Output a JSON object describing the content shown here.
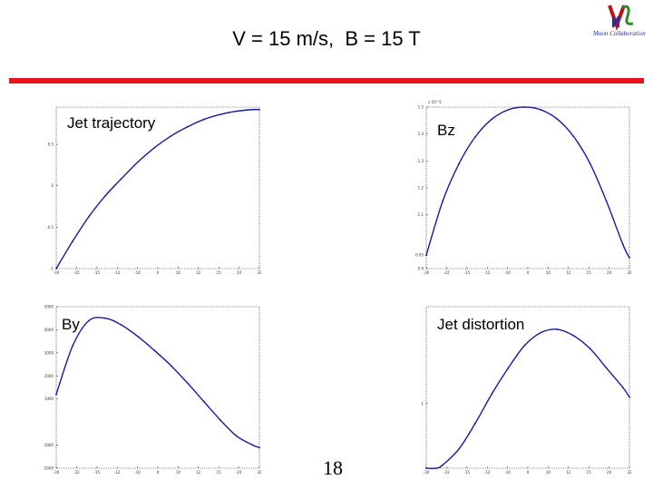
{
  "slide": {
    "title": "V = 15 m/s,  B = 15 T",
    "page_number": "18",
    "logo_text": "Muon Collaboration",
    "accent_color": "#e8141c",
    "line_color": "#1a1aa0"
  },
  "chart_data": [
    {
      "type": "line",
      "label": "Jet trajectory",
      "xlim": [
        -30,
        32
      ],
      "ylim": [
        -1,
        0.95
      ],
      "x_ticks": [
        "-30",
        "-22",
        "-15",
        "-12",
        "-10",
        "0",
        "10",
        "12",
        "15",
        "20",
        "32"
      ],
      "y_ticks": [
        {
          "value": -1,
          "text": "-1"
        },
        {
          "value": -0.5,
          "text": "-0.5"
        },
        {
          "value": 0,
          "text": "0"
        },
        {
          "value": 0.5,
          "text": "0.5"
        }
      ],
      "x": [
        -30,
        -25,
        -20,
        -15,
        -10,
        -5,
        0,
        5,
        10,
        15,
        20,
        25,
        30,
        32
      ],
      "y": [
        -1.0,
        -0.67,
        -0.37,
        -0.12,
        0.09,
        0.29,
        0.46,
        0.6,
        0.71,
        0.8,
        0.86,
        0.9,
        0.92,
        0.92
      ]
    },
    {
      "type": "line",
      "label": "Bz",
      "xlim": [
        -30,
        32
      ],
      "ylim": [
        0.9,
        1.5
      ],
      "exponent_label": "x 10^5",
      "x_ticks": [
        "-30",
        "-22",
        "-15",
        "-12",
        "-10",
        "0",
        "10",
        "12",
        "15",
        "20",
        "32"
      ],
      "y_ticks": [
        {
          "value": 0.9,
          "text": "0.9"
        },
        {
          "value": 0.95,
          "text": "0.95"
        },
        {
          "value": 1.1,
          "text": "1.1"
        },
        {
          "value": 1.2,
          "text": "1.2"
        },
        {
          "value": 1.3,
          "text": "1.3"
        },
        {
          "value": 1.4,
          "text": "1.4"
        },
        {
          "value": 1.5,
          "text": "1.5"
        }
      ],
      "x": [
        -30,
        -25,
        -20,
        -15,
        -10,
        -5,
        0,
        5,
        10,
        15,
        20,
        25,
        30,
        32
      ],
      "y": [
        0.95,
        1.15,
        1.29,
        1.39,
        1.455,
        1.49,
        1.5,
        1.49,
        1.455,
        1.39,
        1.29,
        1.15,
        0.99,
        0.94
      ]
    },
    {
      "type": "line",
      "label": "By",
      "xlim": [
        -30,
        32
      ],
      "ylim": [
        -2000,
        5000
      ],
      "x_ticks": [
        "-30",
        "-22",
        "-15",
        "-12",
        "-10",
        "0",
        "10",
        "12",
        "15",
        "20",
        "32"
      ],
      "y_ticks": [
        {
          "value": -2000,
          "text": "-2000"
        },
        {
          "value": -1000,
          "text": "-1000"
        },
        {
          "value": 1000,
          "text": "1000"
        },
        {
          "value": 2000,
          "text": "2000"
        },
        {
          "value": 3000,
          "text": "3000"
        },
        {
          "value": 4000,
          "text": "4000"
        },
        {
          "value": 5000,
          "text": "5000"
        }
      ],
      "x": [
        -30,
        -25,
        -20,
        -15,
        -10,
        -5,
        0,
        5,
        10,
        15,
        20,
        25,
        30,
        32
      ],
      "y": [
        1200,
        3300,
        4400,
        4500,
        4200,
        3700,
        3100,
        2450,
        1700,
        900,
        100,
        -600,
        -1000,
        -1100
      ]
    },
    {
      "type": "line",
      "label": "Jet distortion",
      "xlim": [
        -30,
        32
      ],
      "ylim": [
        0.98,
        1.03
      ],
      "x_ticks": [
        "-30",
        "-22",
        "-15",
        "-12",
        "-10",
        "0",
        "10",
        "12",
        "15",
        "20",
        "32"
      ],
      "y_ticks": [
        {
          "value": 1,
          "text": "1"
        }
      ],
      "x": [
        -30,
        -27,
        -25,
        -20,
        -15,
        -10,
        -5,
        0,
        5,
        10,
        15,
        20,
        25,
        30,
        32
      ],
      "y": [
        0.98,
        0.98,
        0.981,
        0.986,
        0.994,
        1.003,
        1.011,
        1.018,
        1.022,
        1.023,
        1.021,
        1.017,
        1.011,
        1.005,
        1.002
      ]
    }
  ]
}
